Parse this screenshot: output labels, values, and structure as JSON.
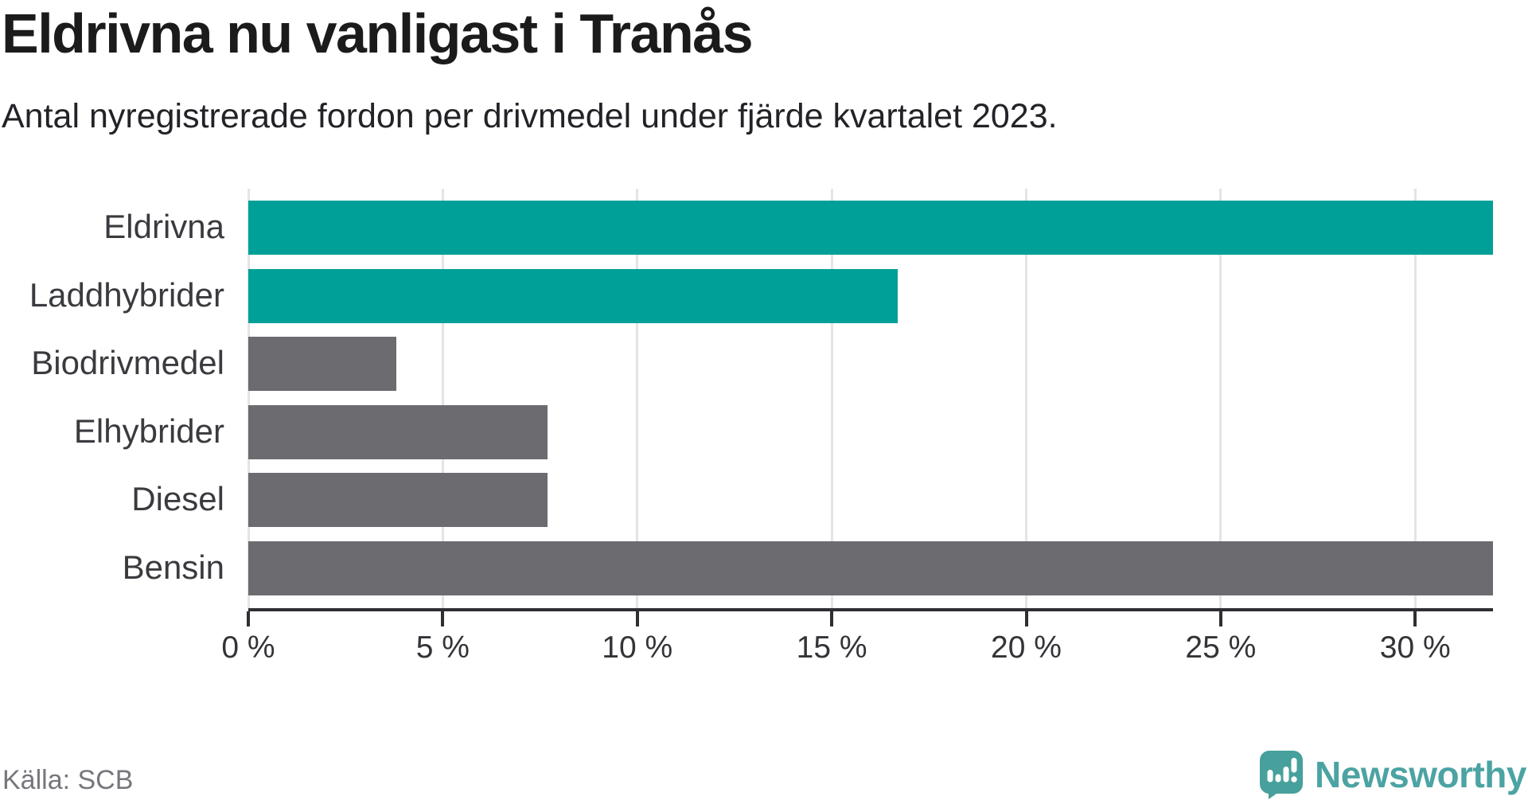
{
  "header": {
    "title": "Eldrivna nu vanligast i Tranås",
    "subtitle": "Antal nyregistrerade fordon per drivmedel under fjärde kvartalet 2023."
  },
  "chart_data": {
    "type": "bar",
    "orientation": "horizontal",
    "title": "Eldrivna nu vanligast i Tranås",
    "subtitle": "Antal nyregistrerade fordon per drivmedel under fjärde kvartalet 2023.",
    "categories": [
      "Eldrivna",
      "Laddhybrider",
      "Biodrivmedel",
      "Elhybrider",
      "Diesel",
      "Bensin"
    ],
    "values": [
      32,
      16.7,
      3.8,
      7.7,
      7.7,
      32
    ],
    "unit": "%",
    "bar_colors": [
      "#00a098",
      "#00a098",
      "#6b6b70",
      "#6b6b70",
      "#6b6b70",
      "#6b6b70"
    ],
    "xlim": [
      0,
      32
    ],
    "xticks": [
      0,
      5,
      10,
      15,
      20,
      25,
      30
    ],
    "xtick_labels": [
      "0 %",
      "5 %",
      "10 %",
      "15 %",
      "20 %",
      "25 %",
      "30 %"
    ],
    "grid": true,
    "legend": "none",
    "note_clipped_bars": "Eldrivna and Bensin bars extend to the axis maximum"
  },
  "footer": {
    "source": "Källa: SCB",
    "brand": "Newsworthy"
  },
  "colors": {
    "accent_teal": "#00a098",
    "neutral_gray": "#6b6b70",
    "logo_bubble": "#47a09b",
    "brand_text": "#4ca3a3",
    "axis": "#2f2f33",
    "gridline": "#e4e4e6"
  }
}
